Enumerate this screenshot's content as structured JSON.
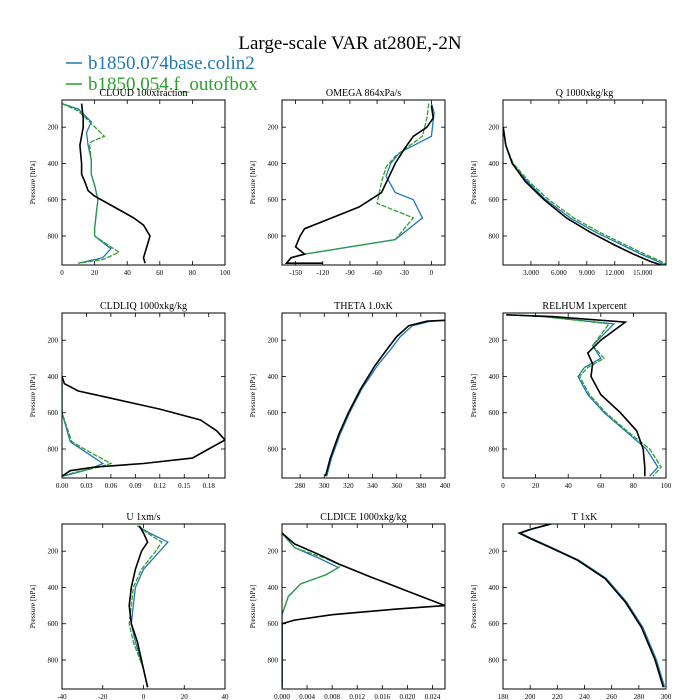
{
  "title": "Large-scale VAR at280E,-2N",
  "legend": [
    {
      "name": "b1850.074base.colin2",
      "color": "#1f77b4"
    },
    {
      "name": "b1850.054.f_outofbox",
      "color": "#2ca02c"
    }
  ],
  "reference_color": "#000000",
  "chart_data": [
    {
      "type": "line",
      "title": "CLOUD  100xfraction",
      "ylabel": "Pressure [hPa]",
      "xlim": [
        0,
        100
      ],
      "ylim": [
        960,
        50
      ],
      "y_inverted": true,
      "xticks": [
        0,
        20,
        40,
        60,
        80,
        100
      ],
      "xtick_labels": [
        "0",
        "20",
        "40",
        "60",
        "80",
        "100"
      ],
      "yticks": [
        200,
        400,
        600,
        800
      ],
      "ytick_labels": [
        "200",
        "400",
        "600",
        "800"
      ],
      "series": [
        {
          "color": "black",
          "x": [
            12,
            13,
            13,
            11,
            12,
            12,
            14,
            16,
            20,
            32,
            44,
            50,
            54,
            52,
            50,
            51
          ],
          "y": [
            70,
            150,
            200,
            300,
            400,
            460,
            500,
            550,
            580,
            640,
            700,
            740,
            800,
            860,
            920,
            950
          ]
        },
        {
          "color": "blue",
          "x": [
            0,
            10,
            18,
            15,
            16,
            18,
            18,
            20,
            22,
            21,
            20,
            20,
            30,
            25,
            10
          ],
          "y": [
            70,
            100,
            170,
            230,
            300,
            380,
            460,
            520,
            600,
            680,
            760,
            800,
            870,
            920,
            950
          ]
        },
        {
          "color": "green",
          "x": [
            0,
            10,
            26,
            18,
            17,
            18,
            18,
            20,
            22,
            21,
            20,
            20,
            35,
            25,
            10
          ],
          "y": [
            70,
            110,
            250,
            280,
            300,
            380,
            460,
            520,
            600,
            680,
            760,
            800,
            890,
            930,
            950
          ]
        }
      ]
    },
    {
      "type": "line",
      "title": "OMEGA  864xPa/s",
      "ylabel": "Pressure [hPa]",
      "xlim": [
        -165,
        15
      ],
      "ylim": [
        960,
        50
      ],
      "y_inverted": true,
      "xticks": [
        -150,
        -120,
        -90,
        -60,
        -30,
        0
      ],
      "xtick_labels": [
        "-150",
        "-120",
        "-90",
        "-60",
        "-30",
        "0"
      ],
      "yticks": [
        200,
        400,
        600,
        800
      ],
      "ytick_labels": [
        "200",
        "400",
        "600",
        "800"
      ],
      "series": [
        {
          "color": "black",
          "x": [
            0,
            2,
            -5,
            -20,
            -30,
            -40,
            -55,
            -80,
            -110,
            -140,
            -145,
            -150,
            -140,
            -155,
            -160,
            -120
          ],
          "y": [
            80,
            150,
            200,
            250,
            320,
            400,
            560,
            640,
            700,
            760,
            800,
            860,
            900,
            920,
            950,
            950
          ]
        },
        {
          "color": "blue",
          "x": [
            0,
            3,
            0,
            -35,
            -45,
            -50,
            -40,
            -20,
            -10,
            -40,
            -90,
            -140,
            -155,
            -160
          ],
          "y": [
            70,
            120,
            250,
            340,
            400,
            470,
            560,
            600,
            700,
            820,
            860,
            900,
            920,
            950
          ]
        },
        {
          "color": "green",
          "x": [
            -3,
            -5,
            -10,
            -40,
            -50,
            -55,
            -60,
            -40,
            -20,
            -40,
            -90,
            -140,
            -155,
            -160
          ],
          "y": [
            70,
            150,
            250,
            360,
            420,
            500,
            620,
            660,
            700,
            820,
            860,
            900,
            920,
            950
          ]
        }
      ]
    },
    {
      "type": "line",
      "title": "Q  1000xkg/kg",
      "ylabel": "Pressure [hPa]",
      "xlim": [
        0,
        17.5
      ],
      "ylim": [
        960,
        50
      ],
      "y_inverted": true,
      "xticks": [
        3,
        6,
        9,
        12,
        15
      ],
      "xtick_labels": [
        "3.000",
        "6.000",
        "9.000",
        "12.000",
        "15.000"
      ],
      "yticks": [
        200,
        400,
        600,
        800
      ],
      "ytick_labels": [
        "200",
        "400",
        "600",
        "800"
      ],
      "series": [
        {
          "color": "black",
          "x": [
            0.02,
            0.3,
            1.0,
            2.4,
            4.4,
            6.8,
            9.4,
            12.0,
            14.0,
            15.8,
            17.0
          ],
          "y": [
            200,
            300,
            400,
            500,
            600,
            700,
            780,
            850,
            900,
            940,
            960
          ]
        },
        {
          "color": "blue",
          "x": [
            0.02,
            0.3,
            1.0,
            2.6,
            4.6,
            7.2,
            10.0,
            12.8,
            14.8,
            16.6,
            17.4
          ],
          "y": [
            200,
            300,
            400,
            500,
            600,
            700,
            780,
            850,
            900,
            940,
            960
          ]
        },
        {
          "color": "green",
          "x": [
            0.02,
            0.3,
            1.1,
            2.8,
            4.9,
            7.6,
            10.4,
            13.2,
            15.2,
            17.0,
            17.6
          ],
          "y": [
            200,
            300,
            400,
            500,
            600,
            700,
            780,
            850,
            900,
            940,
            960
          ]
        }
      ]
    },
    {
      "type": "line",
      "title": "CLDLIQ  1000xkg/kg",
      "ylabel": "Pressure [hPa]",
      "xlim": [
        0,
        0.2
      ],
      "ylim": [
        960,
        50
      ],
      "y_inverted": true,
      "xticks": [
        0,
        0.03,
        0.06,
        0.09,
        0.12,
        0.15,
        0.18
      ],
      "xtick_labels": [
        "0.00",
        "0.03",
        "0.06",
        "0.09",
        "0.12",
        "0.15",
        "0.18"
      ],
      "yticks": [
        200,
        400,
        600,
        800
      ],
      "ytick_labels": [
        "200",
        "400",
        "600",
        "800"
      ],
      "series": [
        {
          "color": "black",
          "x": [
            0,
            0.003,
            0.02,
            0.06,
            0.12,
            0.17,
            0.19,
            0.2,
            0.18,
            0.16,
            0.1,
            0.04,
            0.01,
            0
          ],
          "y": [
            400,
            440,
            480,
            520,
            580,
            640,
            700,
            750,
            800,
            850,
            880,
            900,
            920,
            950
          ]
        },
        {
          "color": "blue",
          "x": [
            0,
            0,
            0.005,
            0.01,
            0.03,
            0.05,
            0.035,
            0.01,
            0
          ],
          "y": [
            400,
            600,
            680,
            760,
            820,
            880,
            910,
            940,
            950
          ]
        },
        {
          "color": "green",
          "x": [
            0,
            0,
            0.006,
            0.012,
            0.035,
            0.06,
            0.045,
            0.015,
            0
          ],
          "y": [
            400,
            600,
            680,
            760,
            820,
            880,
            900,
            930,
            950
          ]
        }
      ]
    },
    {
      "type": "line",
      "title": "THETA  1.0xK",
      "ylabel": "Pressure [hPa]",
      "xlim": [
        265,
        400
      ],
      "ylim": [
        960,
        50
      ],
      "y_inverted": true,
      "xticks": [
        280,
        300,
        320,
        340,
        360,
        380,
        400
      ],
      "xtick_labels": [
        "280",
        "300",
        "320",
        "340",
        "360",
        "380",
        "400"
      ],
      "yticks": [
        200,
        400,
        600,
        800
      ],
      "ytick_labels": [
        "200",
        "400",
        "600",
        "800"
      ],
      "series": [
        {
          "color": "black",
          "x": [
            301,
            305,
            312,
            320,
            330,
            342,
            352,
            360,
            370,
            385,
            400
          ],
          "y": [
            950,
            850,
            720,
            600,
            470,
            340,
            250,
            180,
            120,
            95,
            90
          ]
        },
        {
          "color": "blue",
          "x": [
            302,
            306,
            313,
            321,
            331,
            344,
            355,
            363,
            373,
            388,
            402
          ],
          "y": [
            950,
            850,
            720,
            600,
            470,
            340,
            250,
            180,
            120,
            95,
            90
          ]
        },
        {
          "color": "green",
          "x": [
            301,
            305,
            312,
            320,
            330,
            342,
            352,
            360,
            370,
            385,
            400
          ],
          "y": [
            950,
            850,
            720,
            600,
            470,
            340,
            250,
            180,
            120,
            95,
            90
          ]
        }
      ]
    },
    {
      "type": "line",
      "title": "RELHUM  1xpercent",
      "ylabel": "Pressure [hPa]",
      "xlim": [
        0,
        100
      ],
      "ylim": [
        960,
        50
      ],
      "y_inverted": true,
      "xticks": [
        0,
        20,
        40,
        60,
        80,
        100
      ],
      "xtick_labels": [
        "0",
        "20",
        "40",
        "60",
        "80",
        "100"
      ],
      "yticks": [
        200,
        400,
        600,
        800
      ],
      "ytick_labels": [
        "200",
        "400",
        "600",
        "800"
      ],
      "series": [
        {
          "color": "black",
          "x": [
            2,
            30,
            75,
            60,
            52,
            55,
            54,
            60,
            72,
            82,
            86,
            87,
            87
          ],
          "y": [
            60,
            70,
            100,
            200,
            270,
            330,
            400,
            500,
            600,
            700,
            800,
            900,
            950
          ]
        },
        {
          "color": "blue",
          "x": [
            2,
            25,
            68,
            55,
            60,
            50,
            46,
            52,
            62,
            75,
            88,
            95,
            90
          ],
          "y": [
            60,
            70,
            110,
            230,
            300,
            350,
            400,
            500,
            600,
            700,
            800,
            900,
            950
          ]
        },
        {
          "color": "green",
          "x": [
            2,
            25,
            65,
            55,
            62,
            52,
            47,
            53,
            63,
            76,
            90,
            97,
            92
          ],
          "y": [
            60,
            70,
            110,
            230,
            300,
            350,
            400,
            500,
            600,
            700,
            800,
            900,
            950
          ]
        }
      ]
    },
    {
      "type": "line",
      "title": "U  1xm/s",
      "ylabel": "Pressure [hPa]",
      "xlim": [
        -40,
        40
      ],
      "ylim": [
        960,
        50
      ],
      "y_inverted": true,
      "xticks": [
        -40,
        -20,
        0,
        20,
        40
      ],
      "xtick_labels": [
        "-40",
        "-20",
        "0",
        "20",
        "40"
      ],
      "yticks": [
        200,
        400,
        600,
        800
      ],
      "ytick_labels": [
        "200",
        "400",
        "600",
        "800"
      ],
      "series": [
        {
          "color": "black",
          "x": [
            -2,
            0,
            2,
            -1,
            -4,
            -6,
            -7,
            -6,
            -3,
            0,
            2
          ],
          "y": [
            60,
            100,
            150,
            200,
            300,
            400,
            500,
            600,
            700,
            850,
            950
          ]
        },
        {
          "color": "blue",
          "x": [
            -3,
            3,
            12,
            8,
            0,
            -4,
            -5,
            -6,
            -4,
            0,
            2
          ],
          "y": [
            60,
            100,
            150,
            200,
            300,
            400,
            500,
            600,
            700,
            850,
            950
          ]
        },
        {
          "color": "green",
          "x": [
            -3,
            2,
            9,
            6,
            -1,
            -5,
            -6,
            -7,
            -5,
            0,
            2
          ],
          "y": [
            60,
            100,
            150,
            200,
            300,
            400,
            500,
            600,
            700,
            850,
            950
          ]
        }
      ]
    },
    {
      "type": "line",
      "title": "CLDICE  1000xkg/kg",
      "ylabel": "Pressure [hPa]",
      "xlim": [
        0,
        0.026
      ],
      "ylim": [
        960,
        50
      ],
      "y_inverted": true,
      "xticks": [
        0,
        0.004,
        0.008,
        0.012,
        0.016,
        0.02,
        0.024
      ],
      "xtick_labels": [
        "0.000",
        "0.004",
        "0.008",
        "0.012",
        "0.016",
        "0.020",
        "0.024"
      ],
      "yticks": [
        200,
        400,
        600,
        800
      ],
      "ytick_labels": [
        "200",
        "400",
        "600",
        "800"
      ],
      "series": [
        {
          "color": "black",
          "x": [
            0,
            0.002,
            0.006,
            0.009,
            0.014,
            0.02,
            0.026,
            0.018,
            0.008,
            0.002,
            0,
            0
          ],
          "y": [
            100,
            160,
            220,
            270,
            340,
            420,
            500,
            520,
            550,
            580,
            600,
            950
          ]
        },
        {
          "color": "blue",
          "x": [
            0,
            0.002,
            0.006,
            0.009,
            0.007,
            0.003,
            0.001,
            0,
            0
          ],
          "y": [
            100,
            180,
            240,
            290,
            330,
            380,
            450,
            550,
            950
          ]
        },
        {
          "color": "green",
          "x": [
            0,
            0.002,
            0.007,
            0.0095,
            0.007,
            0.003,
            0.001,
            0,
            0
          ],
          "y": [
            100,
            180,
            240,
            280,
            330,
            380,
            450,
            550,
            950
          ]
        }
      ]
    },
    {
      "type": "line",
      "title": "T  1xK",
      "ylabel": "Pressure [hPa]",
      "xlim": [
        180,
        300
      ],
      "ylim": [
        960,
        50
      ],
      "y_inverted": true,
      "xticks": [
        180,
        200,
        220,
        240,
        260,
        280,
        300
      ],
      "xtick_labels": [
        "180",
        "200",
        "220",
        "240",
        "260",
        "280",
        "300"
      ],
      "yticks": [
        200,
        400,
        600,
        800
      ],
      "ytick_labels": [
        "200",
        "400",
        "600",
        "800"
      ],
      "series": [
        {
          "color": "black",
          "x": [
            215,
            200,
            192,
            200,
            215,
            235,
            255,
            270,
            282,
            292,
            298
          ],
          "y": [
            50,
            80,
            100,
            130,
            180,
            250,
            350,
            480,
            620,
            800,
            950
          ]
        },
        {
          "color": "blue",
          "x": [
            216,
            201,
            193,
            201,
            216,
            236,
            256,
            271,
            283,
            293,
            299
          ],
          "y": [
            50,
            80,
            100,
            130,
            180,
            250,
            350,
            480,
            620,
            800,
            950
          ]
        },
        {
          "color": "green",
          "x": [
            215,
            200,
            192,
            200,
            215,
            235,
            255,
            270,
            282,
            292,
            298
          ],
          "y": [
            50,
            80,
            100,
            130,
            180,
            250,
            350,
            480,
            620,
            800,
            950
          ]
        }
      ]
    }
  ]
}
